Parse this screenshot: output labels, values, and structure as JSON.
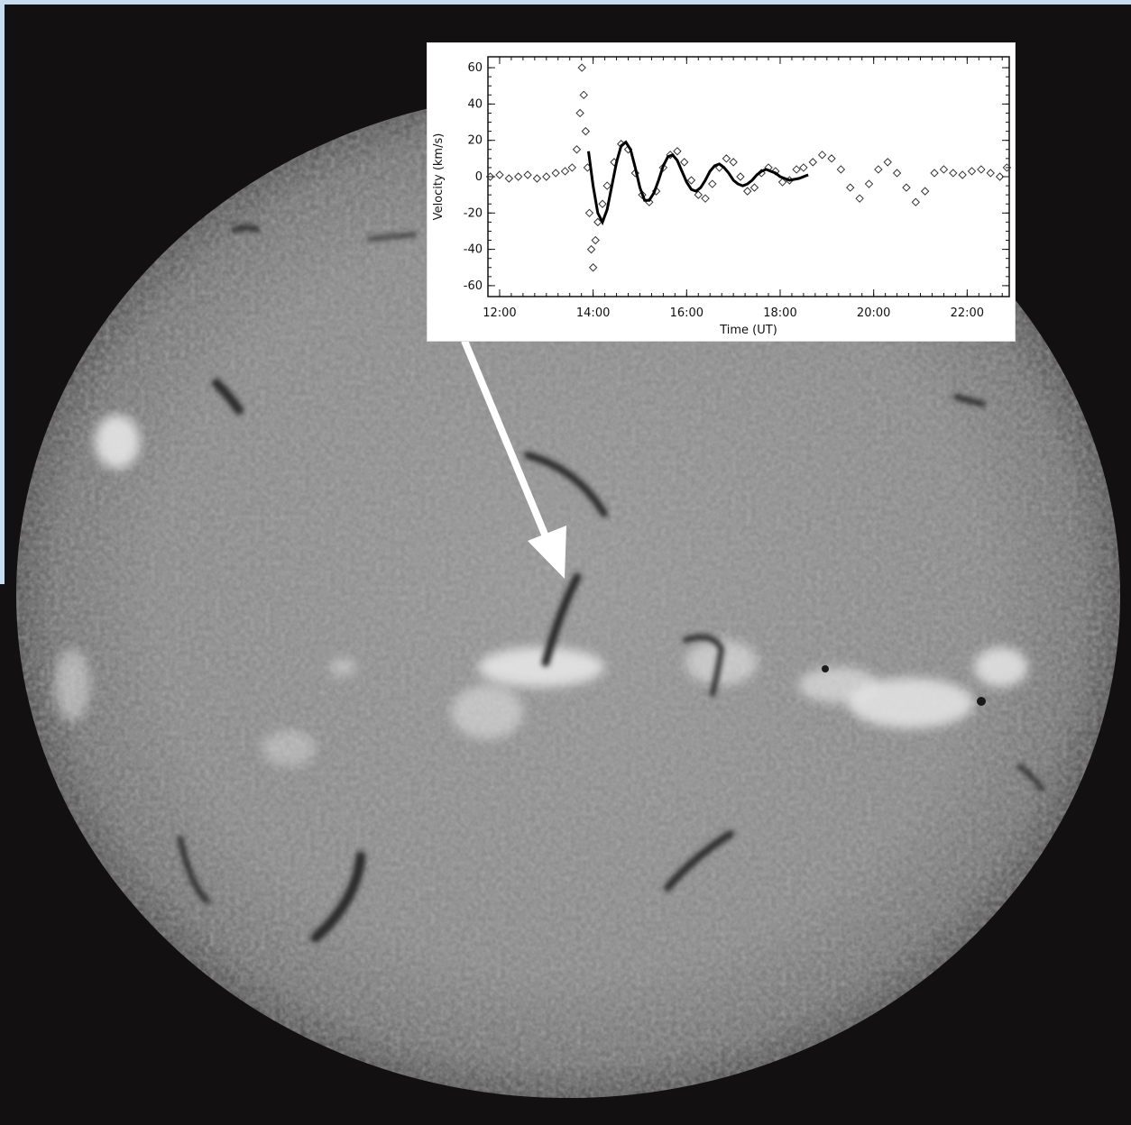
{
  "image": {
    "subject": "sun-disk-halpha",
    "colors": {
      "background_frame": "#121010",
      "page_edge": "#c9dcef",
      "disk_mid": "#8e8e8e",
      "arrow": "#ffffff"
    }
  },
  "inset_chart": {
    "chart_data": {
      "type": "scatter",
      "xlabel": "Time (UT)",
      "ylabel": "Velocity (km/s)",
      "xlim": [
        11.75,
        22.9
      ],
      "ylim": [
        -66,
        66
      ],
      "x_ticks": [
        "12:00",
        "14:00",
        "16:00",
        "18:00",
        "20:00",
        "22:00"
      ],
      "x_tick_values": [
        12,
        14,
        16,
        18,
        20,
        22
      ],
      "y_ticks": [
        "60",
        "40",
        "20",
        "0",
        "-20",
        "-40",
        "-60"
      ],
      "y_tick_values": [
        60,
        40,
        20,
        0,
        -20,
        -40,
        -60
      ],
      "series": [
        {
          "marker": "diamond",
          "x": [
            11.8,
            12.0,
            12.2,
            12.4,
            12.6,
            12.8,
            13.0,
            13.2,
            13.4,
            13.55,
            13.65,
            13.72,
            13.76,
            13.8,
            13.84,
            13.88,
            13.92,
            13.96,
            14.0,
            14.05,
            14.1,
            14.2,
            14.3,
            14.45,
            14.6,
            14.75,
            14.9,
            15.05,
            15.2,
            15.35,
            15.5,
            15.65,
            15.8,
            15.95,
            16.1,
            16.25,
            16.4,
            16.55,
            16.7,
            16.85,
            17.0,
            17.15,
            17.3,
            17.45,
            17.6,
            17.75,
            17.9,
            18.05,
            18.2,
            18.35,
            18.5,
            18.7,
            18.9,
            19.1,
            19.3,
            19.5,
            19.7,
            19.9,
            20.1,
            20.3,
            20.5,
            20.7,
            20.9,
            21.1,
            21.3,
            21.5,
            21.7,
            21.9,
            22.1,
            22.3,
            22.5,
            22.7,
            22.85
          ],
          "y": [
            0,
            1,
            -1,
            0,
            1,
            -1,
            0,
            2,
            3,
            5,
            15,
            35,
            60,
            45,
            25,
            5,
            -20,
            -40,
            -50,
            -35,
            -25,
            -15,
            -5,
            8,
            18,
            15,
            2,
            -10,
            -14,
            -8,
            5,
            12,
            14,
            8,
            -2,
            -10,
            -12,
            -4,
            5,
            10,
            8,
            0,
            -8,
            -6,
            2,
            5,
            3,
            -3,
            -2,
            4,
            5,
            8,
            12,
            10,
            4,
            -6,
            -12,
            -4,
            4,
            8,
            2,
            -6,
            -14,
            -8,
            2,
            4,
            2,
            1,
            3,
            4,
            2,
            0,
            5
          ]
        },
        {
          "line_style": "solid",
          "x": [
            13.9,
            14.0,
            14.1,
            14.2,
            14.3,
            14.4,
            14.5,
            14.6,
            14.7,
            14.8,
            14.9,
            15.0,
            15.1,
            15.2,
            15.3,
            15.4,
            15.5,
            15.6,
            15.7,
            15.8,
            15.9,
            16.0,
            16.1,
            16.2,
            16.3,
            16.4,
            16.5,
            16.6,
            16.7,
            16.8,
            16.9,
            17.0,
            17.1,
            17.2,
            17.3,
            17.4,
            17.5,
            17.6,
            17.7,
            17.8,
            17.9,
            18.0,
            18.2,
            18.4,
            18.6
          ],
          "y": [
            14,
            -5,
            -20,
            -25,
            -18,
            -5,
            8,
            17,
            19,
            15,
            5,
            -6,
            -13,
            -13,
            -9,
            -2,
            6,
            11,
            12,
            9,
            3,
            -3,
            -7,
            -8,
            -6,
            -2,
            3,
            6,
            7,
            5,
            2,
            -2,
            -4,
            -5,
            -4,
            -2,
            1,
            3,
            4,
            3,
            2,
            0,
            -2,
            -1,
            1
          ]
        }
      ]
    }
  }
}
